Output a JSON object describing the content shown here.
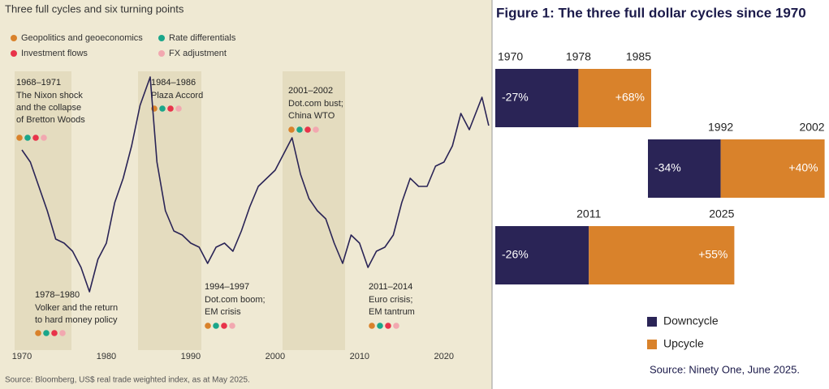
{
  "chart_data": [
    {
      "type": "line",
      "title": "Three full cycles and six turning points",
      "legend_items": [
        {
          "name": "Geopolitics and geoeconomics",
          "color": "#d9822b"
        },
        {
          "name": "Rate differentials",
          "color": "#1aa68a"
        },
        {
          "name": "Investment flows",
          "color": "#e8334a"
        },
        {
          "name": "FX adjustment",
          "color": "#f2a8b0"
        }
      ],
      "annotations": [
        {
          "label": "1968–1971",
          "text": [
            "The Nixon shock",
            "and the collapse",
            "of Bretton Woods"
          ]
        },
        {
          "label": "1984–1986",
          "text": [
            "Plaza Accord"
          ]
        },
        {
          "label": "2001–2002",
          "text": [
            "Dot.com bust;",
            "China WTO"
          ]
        },
        {
          "label": "1978–1980",
          "text": [
            "Volker and the return",
            "to hard money policy"
          ]
        },
        {
          "label": "1994–1997",
          "text": [
            "Dot.com boom;",
            "EM crisis"
          ]
        },
        {
          "label": "2011–2014",
          "text": [
            "Euro crisis;",
            "EM tantrum"
          ]
        }
      ],
      "x": [
        1970,
        1971,
        1972,
        1973,
        1974,
        1975,
        1976,
        1977,
        1978,
        1979,
        1980,
        1981,
        1982,
        1983,
        1984,
        1985.2,
        1986,
        1987,
        1988,
        1989,
        1990,
        1991,
        1992,
        1993,
        1994,
        1995,
        1996,
        1997,
        1998,
        1999,
        2000,
        2001,
        2002,
        2003,
        2004,
        2005,
        2006,
        2007,
        2008,
        2009,
        2010,
        2011,
        2012,
        2013,
        2014,
        2015,
        2016,
        2017,
        2018,
        2019,
        2020,
        2021,
        2022,
        2023,
        2024.5,
        2025.3
      ],
      "series": [
        {
          "color": "#2a2456",
          "values": [
            113,
            110,
            104,
            98,
            91,
            90,
            88,
            84,
            78,
            86,
            90,
            100,
            106,
            114,
            124,
            131,
            110,
            98,
            93,
            92,
            90,
            89,
            85,
            89,
            90,
            88,
            93,
            99,
            104,
            106,
            108,
            112,
            116,
            107,
            101,
            98,
            96,
            90,
            85,
            92,
            90,
            84,
            88,
            89,
            92,
            100,
            106,
            104,
            104,
            109,
            110,
            114,
            122,
            118,
            126,
            119
          ]
        }
      ],
      "xlim": [
        1968,
        2025.6
      ],
      "xticks": [
        1970,
        1980,
        1990,
        2000,
        2010,
        2020
      ],
      "ylim": [
        70,
        135
      ],
      "source": "Source: Bloomberg, US$ real trade weighted index, as at May 2025."
    },
    {
      "type": "bar",
      "orientation": "horizontal",
      "title": "Figure 1: The three full dollar cycles since 1970",
      "rows": [
        {
          "xticks": [
            1970,
            1978,
            1985
          ]
        },
        {
          "xticks": [
            1992,
            2002
          ]
        },
        {
          "xticks": [
            2011,
            2025
          ]
        }
      ],
      "series": [
        {
          "name": "Downcycle",
          "color": "#2a2456",
          "values": [
            -27,
            -34,
            -26
          ],
          "value_labels": [
            "-27%",
            "-34%",
            "-26%"
          ]
        },
        {
          "name": "Upcycle",
          "color": "#d9822b",
          "values": [
            68,
            40,
            55
          ],
          "value_labels": [
            "+68%",
            "+40%",
            "+55%"
          ]
        }
      ],
      "source": "Source: Ninety One, June 2025."
    }
  ]
}
